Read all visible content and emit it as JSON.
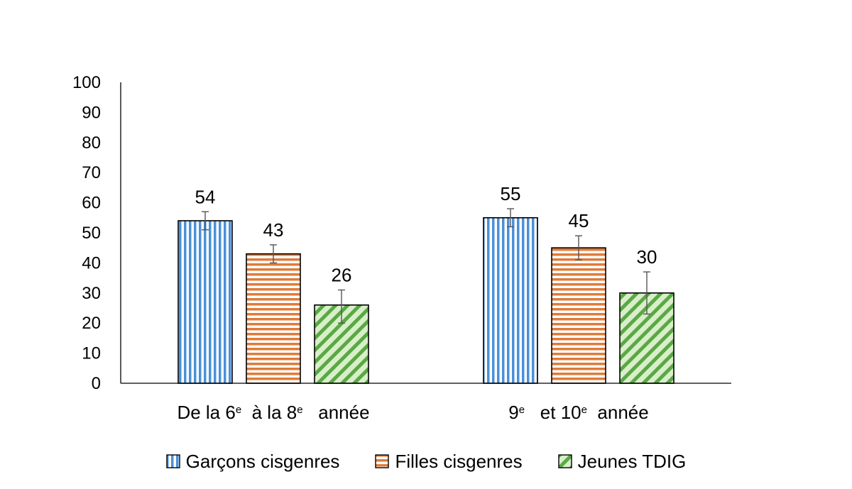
{
  "chart_data": {
    "type": "bar",
    "title": "",
    "xlabel": "",
    "ylabel": "",
    "ylim": [
      0,
      100
    ],
    "yticks": [
      0,
      10,
      20,
      30,
      40,
      50,
      60,
      70,
      80,
      90,
      100
    ],
    "grid": false,
    "legend_position": "bottom",
    "categories": [
      {
        "parts": [
          {
            "t": "De la 6"
          },
          {
            "t": "e",
            "sup": true
          },
          {
            "t": "  à la 8"
          },
          {
            "t": "e",
            "sup": true
          },
          {
            "t": "   année"
          }
        ]
      },
      {
        "parts": [
          {
            "t": "9"
          },
          {
            "t": "e",
            "sup": true
          },
          {
            "t": "   et 10"
          },
          {
            "t": "e",
            "sup": true
          },
          {
            "t": "  année"
          }
        ]
      }
    ],
    "series": [
      {
        "name": "Garçons cisgenres",
        "values": [
          54,
          55
        ],
        "error_low": [
          51,
          52
        ],
        "error_high": [
          57,
          58
        ],
        "color": "#4a90d9",
        "pattern": "vertical-stripes"
      },
      {
        "name": "Filles cisgenres",
        "values": [
          43,
          45
        ],
        "error_low": [
          40,
          41
        ],
        "error_high": [
          46,
          49
        ],
        "color": "#e07b39",
        "pattern": "horizontal-stripes"
      },
      {
        "name": "Jeunes TDIG",
        "values": [
          26,
          30
        ],
        "error_low": [
          20,
          23
        ],
        "error_high": [
          31,
          37
        ],
        "color": "#5aa845",
        "pattern": "diagonal-stripes"
      }
    ]
  }
}
